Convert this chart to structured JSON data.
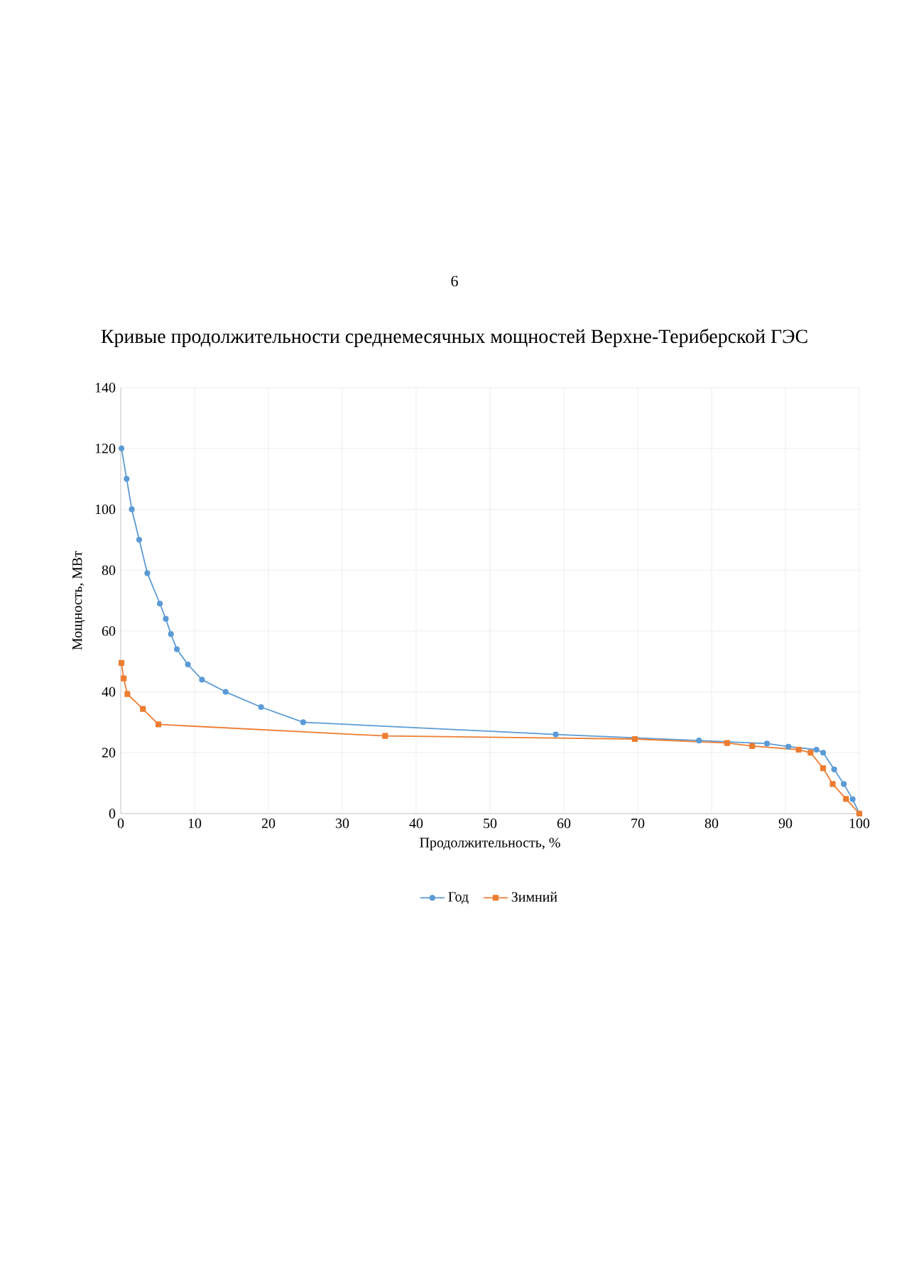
{
  "chart_data": {
    "type": "line",
    "title": "Кривые продолжительности среднемесячных мощностей Верхне-Териберской ГЭС",
    "xlabel": "Продолжительность, %",
    "ylabel": "Мощность, МВт",
    "annotations": [
      "6"
    ],
    "xlim": [
      0,
      100
    ],
    "ylim": [
      0,
      140
    ],
    "xticks": [
      0,
      10,
      20,
      30,
      40,
      50,
      60,
      70,
      80,
      90,
      100
    ],
    "yticks": [
      0,
      20,
      40,
      60,
      80,
      100,
      120,
      140
    ],
    "grid": true,
    "legend": "bottom",
    "series": [
      {
        "name": "Год",
        "color": "#5b9bd5",
        "marker": "circle",
        "x": [
          0.1,
          0.8,
          1.5,
          2.5,
          3.6,
          5.3,
          6.1,
          6.8,
          7.6,
          9.1,
          11.0,
          14.2,
          19.0,
          24.7,
          58.9,
          78.3,
          87.5,
          90.4,
          94.2,
          95.1,
          96.6,
          97.9,
          99.1,
          100
        ],
        "values": [
          120,
          110,
          100,
          90,
          79,
          69,
          64,
          59,
          54,
          49,
          44,
          40,
          35,
          30,
          26,
          24,
          23,
          22,
          21,
          20,
          14.5,
          9.7,
          4.7,
          0
        ]
      },
      {
        "name": "Зимний",
        "color": "#ed7d31",
        "marker": "square",
        "x": [
          0.1,
          0.4,
          0.9,
          3.0,
          5.1,
          35.8,
          69.6,
          82.1,
          85.5,
          91.8,
          93.4,
          95.1,
          96.4,
          98.2,
          100
        ],
        "values": [
          49.5,
          44.4,
          39.3,
          34.4,
          29.3,
          25.5,
          24.5,
          23.2,
          22.2,
          21.0,
          20.0,
          14.9,
          9.7,
          4.8,
          0
        ]
      }
    ]
  }
}
